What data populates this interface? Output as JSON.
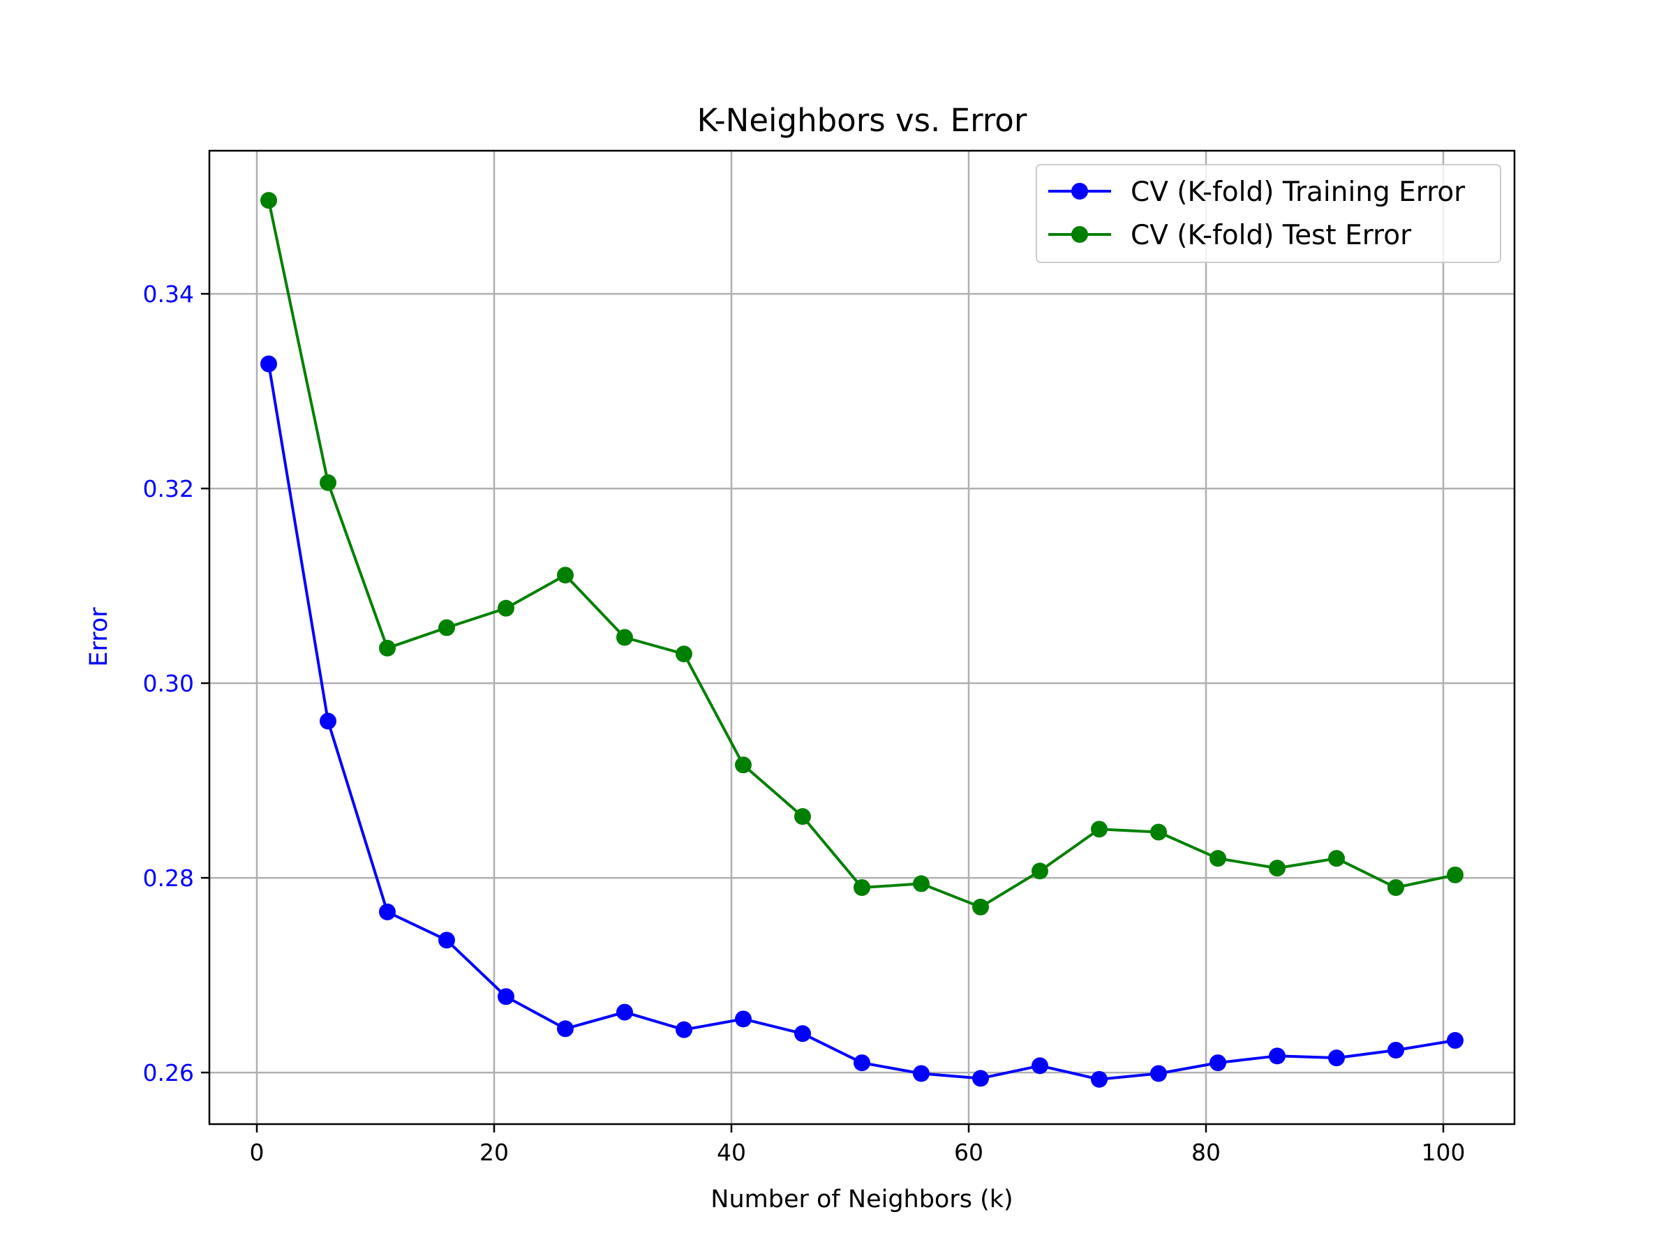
{
  "chart_data": {
    "type": "line",
    "title": "K-Neighbors vs. Error",
    "xlabel": "Number of Neighbors (k)",
    "ylabel": "Error",
    "xlim": [
      -4,
      106
    ],
    "ylim": [
      0.2547,
      0.3547
    ],
    "xticks": [
      0,
      20,
      40,
      60,
      80,
      100
    ],
    "yticks": [
      0.26,
      0.28,
      0.3,
      0.32,
      0.34
    ],
    "xtick_labels": [
      "0",
      "20",
      "40",
      "60",
      "80",
      "100"
    ],
    "ytick_labels": [
      "0.26",
      "0.28",
      "0.30",
      "0.32",
      "0.34"
    ],
    "grid": true,
    "legend_position": "top-right",
    "x": [
      1,
      6,
      11,
      16,
      21,
      26,
      31,
      36,
      41,
      46,
      51,
      56,
      61,
      66,
      71,
      76,
      81,
      86,
      91,
      96,
      101
    ],
    "series": [
      {
        "name": "CV (K-fold) Training Error",
        "color": "#0000ff",
        "marker": "circle",
        "values": [
          0.3328,
          0.2961,
          0.2765,
          0.2736,
          0.2678,
          0.2645,
          0.2662,
          0.2644,
          0.2655,
          0.264,
          0.261,
          0.2599,
          0.2594,
          0.2607,
          0.2593,
          0.2599,
          0.261,
          0.2617,
          0.2615,
          0.2623,
          0.2633
        ]
      },
      {
        "name": "CV (K-fold) Test Error",
        "color": "#008000",
        "marker": "circle",
        "values": [
          0.3496,
          0.3206,
          0.3036,
          0.3057,
          0.3077,
          0.3111,
          0.3047,
          0.303,
          0.2916,
          0.2863,
          0.279,
          0.2794,
          0.277,
          0.2807,
          0.285,
          0.2847,
          0.282,
          0.281,
          0.282,
          0.279,
          0.2803
        ]
      }
    ],
    "colors": {
      "ylabel": "#0000ff",
      "yticks": "#0000ff",
      "grid": "#b0b0b0",
      "legend_border": "#cccccc"
    }
  }
}
